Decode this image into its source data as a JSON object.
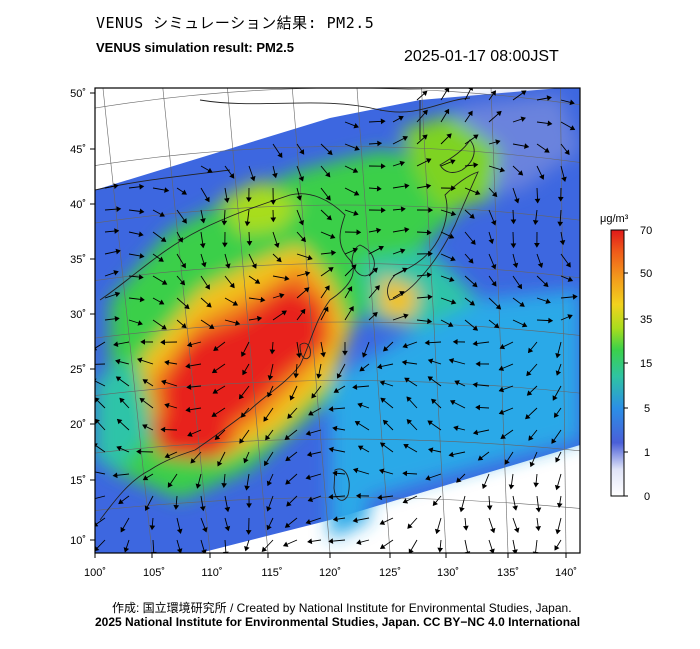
{
  "header": {
    "title_jp": "VENUS シミュレーション結果: PM2.5",
    "title_en": "VENUS simulation result: PM2.5",
    "timestamp": "2025-01-17 08:00JST"
  },
  "map": {
    "lon_ticks": [
      "100˚",
      "105˚",
      "110˚",
      "115˚",
      "120˚",
      "125˚",
      "130˚",
      "135˚",
      "140˚"
    ],
    "lat_ticks": [
      "50˚",
      "45˚",
      "40˚",
      "35˚",
      "30˚",
      "25˚",
      "20˚",
      "15˚",
      "10˚"
    ],
    "field": "PM2.5 concentration with wind vectors",
    "colors": {
      "very_high": "#e8201c",
      "high": "#f07a1a",
      "mid_high": "#f2c21e",
      "mid": "#7ed321",
      "low_mid": "#2ec4a8",
      "low": "#2aa9e8",
      "very_low": "#3d67e0",
      "minimal": "#6a83dd"
    }
  },
  "colorbar": {
    "unit": "μg/m³",
    "labels": [
      "70",
      "50",
      "35",
      "15",
      "5",
      "1",
      "0"
    ]
  },
  "footer": {
    "credit_jp": "作成: 国立環境研究所 / Created by National Institute for Environmental Studies, Japan.",
    "credit_en": "2025 National Institute for Environmental Studies, Japan. CC BY−NC 4.0 International"
  }
}
